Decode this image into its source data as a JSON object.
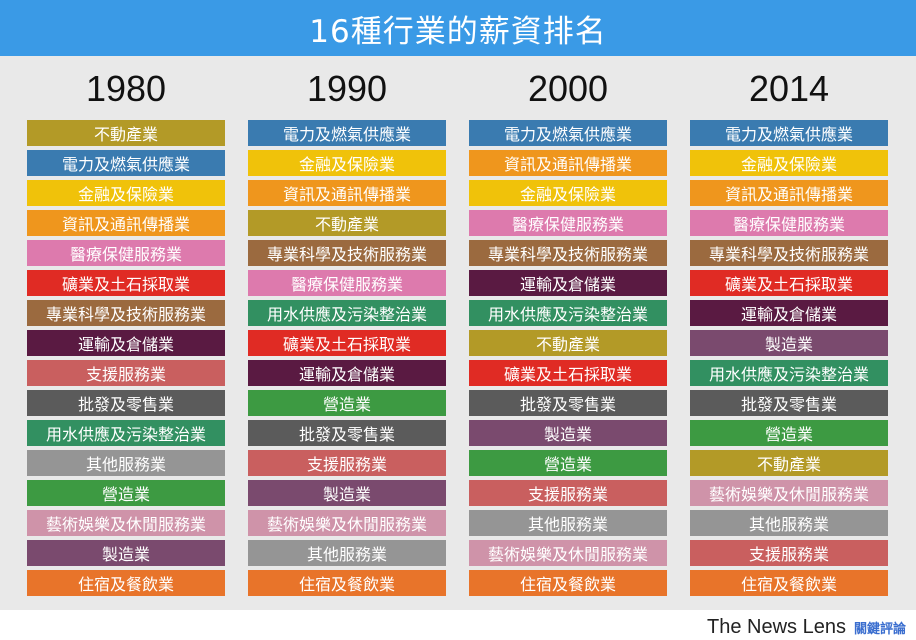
{
  "title": "16種行業的薪資排名",
  "industry_colors": {
    "不動產業": "#b39a27",
    "電力及燃氣供應業": "#3a7bb0",
    "金融及保險業": "#f0c20a",
    "資訊及通訊傳播業": "#ef961d",
    "醫療保健服務業": "#dd7aad",
    "礦業及土石採取業": "#e02b24",
    "專業科學及技術服務業": "#9b6a3f",
    "運輸及倉儲業": "#5a1a42",
    "支援服務業": "#c95f5f",
    "批發及零售業": "#5b5b5b",
    "用水供應及污染整治業": "#329061",
    "其他服務業": "#959595",
    "營造業": "#3d9a42",
    "藝術娛樂及休閒服務業": "#cf93a9",
    "製造業": "#7a4a6e",
    "住宿及餐飲業": "#e8742a"
  },
  "columns": [
    {
      "year": "1980",
      "items": [
        "不動產業",
        "電力及燃氣供應業",
        "金融及保險業",
        "資訊及通訊傳播業",
        "醫療保健服務業",
        "礦業及土石採取業",
        "專業科學及技術服務業",
        "運輸及倉儲業",
        "支援服務業",
        "批發及零售業",
        "用水供應及污染整治業",
        "其他服務業",
        "營造業",
        "藝術娛樂及休閒服務業",
        "製造業",
        "住宿及餐飲業"
      ]
    },
    {
      "year": "1990",
      "items": [
        "電力及燃氣供應業",
        "金融及保險業",
        "資訊及通訊傳播業",
        "不動產業",
        "專業科學及技術服務業",
        "醫療保健服務業",
        "用水供應及污染整治業",
        "礦業及土石採取業",
        "運輸及倉儲業",
        "營造業",
        "批發及零售業",
        "支援服務業",
        "製造業",
        "藝術娛樂及休閒服務業",
        "其他服務業",
        "住宿及餐飲業"
      ]
    },
    {
      "year": "2000",
      "items": [
        "電力及燃氣供應業",
        "資訊及通訊傳播業",
        "金融及保險業",
        "醫療保健服務業",
        "專業科學及技術服務業",
        "運輸及倉儲業",
        "用水供應及污染整治業",
        "不動產業",
        "礦業及土石採取業",
        "批發及零售業",
        "製造業",
        "營造業",
        "支援服務業",
        "其他服務業",
        "藝術娛樂及休閒服務業",
        "住宿及餐飲業"
      ]
    },
    {
      "year": "2014",
      "items": [
        "電力及燃氣供應業",
        "金融及保險業",
        "資訊及通訊傳播業",
        "醫療保健服務業",
        "專業科學及技術服務業",
        "礦業及土石採取業",
        "運輸及倉儲業",
        "製造業",
        "用水供應及污染整治業",
        "批發及零售業",
        "營造業",
        "不動產業",
        "藝術娛樂及休閒服務業",
        "其他服務業",
        "支援服務業",
        "住宿及餐飲業"
      ]
    }
  ],
  "footer": {
    "brand_en": "The News Lens",
    "brand_zh": "關鍵評論"
  }
}
